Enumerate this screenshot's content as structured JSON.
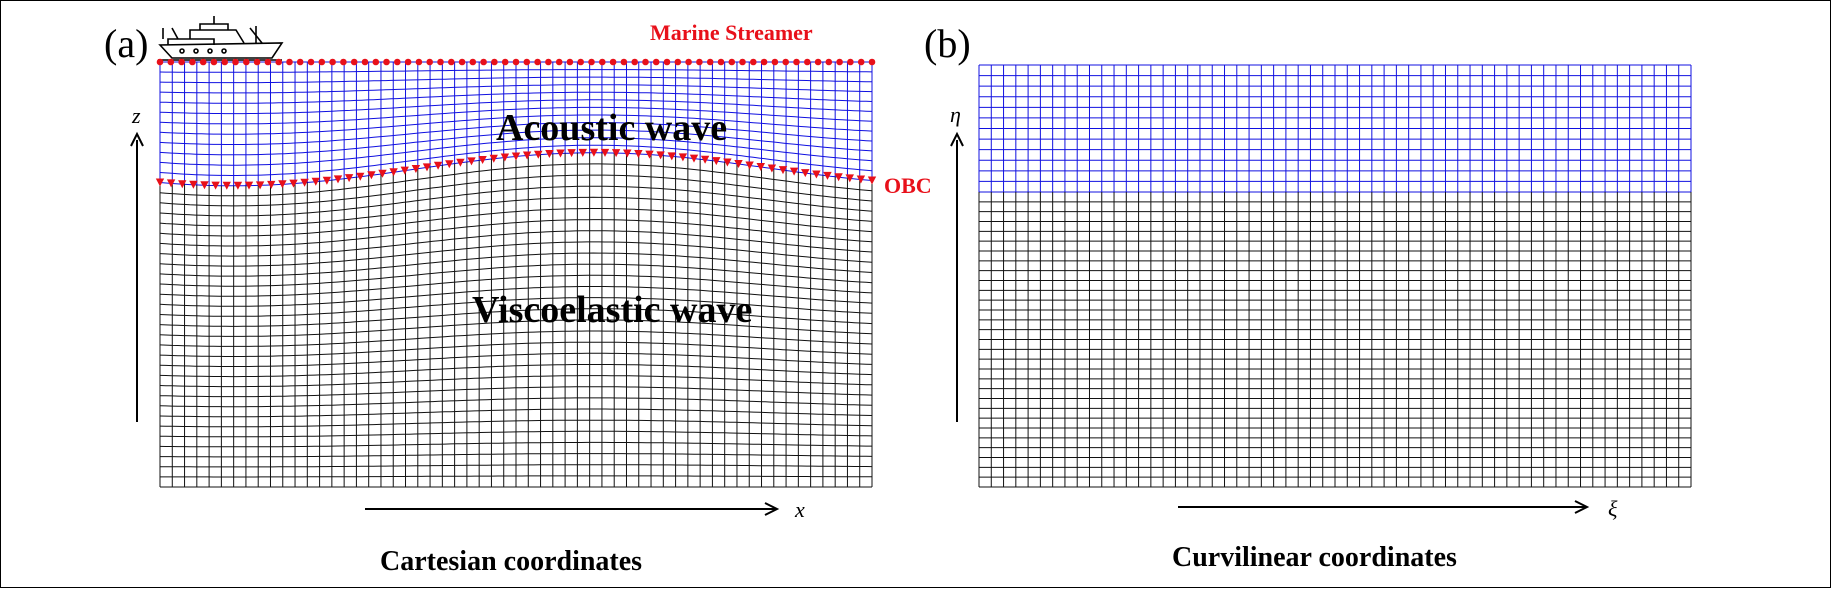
{
  "panels": {
    "a": {
      "label": "(a)",
      "title": "Cartesian coordinates",
      "region_top": "Acoustic wave",
      "region_bottom": "Viscoelastic wave",
      "streamer_label": "Marine Streamer",
      "obc_label": "OBC",
      "x_axis": "x",
      "z_axis": "z"
    },
    "b": {
      "label": "(b)",
      "title": "Curvilinear coordinates",
      "xi_axis": "ξ",
      "eta_axis": "η"
    }
  },
  "colors": {
    "acoustic_grid": "#1010e0",
    "elastic_grid": "#111111",
    "marker": "#e8101a",
    "annotation": "#e8101a"
  },
  "grid": {
    "columns": 58,
    "acoustic_rows": 12,
    "elastic_rows": 30
  },
  "icons": [
    "ship-icon",
    "streamer-receiver-icon",
    "obc-receiver-icon"
  ]
}
